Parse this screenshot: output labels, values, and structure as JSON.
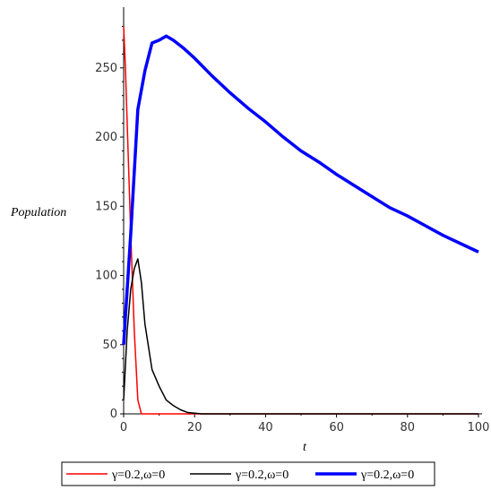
{
  "chart_data": {
    "type": "line",
    "title": "",
    "xlabel": "t",
    "ylabel": "Population",
    "xlim": [
      0,
      100
    ],
    "ylim": [
      0,
      290
    ],
    "x_ticks": [
      0,
      20,
      40,
      60,
      80,
      100
    ],
    "y_ticks": [
      0,
      50,
      100,
      150,
      200,
      250
    ],
    "grid": false,
    "legend_position": "bottom",
    "series": [
      {
        "name": "γ=0.2,ω=0",
        "color": "#ff0000",
        "points": [
          [
            0,
            280
          ],
          [
            0.5,
            250
          ],
          [
            1,
            210
          ],
          [
            2,
            130
          ],
          [
            3,
            60
          ],
          [
            4,
            10
          ],
          [
            5,
            0
          ],
          [
            20,
            0
          ],
          [
            100,
            0
          ]
        ]
      },
      {
        "name": "γ=0.2,ω=0",
        "color": "#000000",
        "points": [
          [
            0,
            10
          ],
          [
            1,
            60
          ],
          [
            2,
            90
          ],
          [
            3,
            105
          ],
          [
            4,
            112
          ],
          [
            5,
            95
          ],
          [
            6,
            65
          ],
          [
            8,
            32
          ],
          [
            10,
            20
          ],
          [
            12,
            10
          ],
          [
            14,
            6
          ],
          [
            16,
            3
          ],
          [
            18,
            1
          ],
          [
            20,
            0.5
          ],
          [
            22,
            0
          ],
          [
            100,
            0
          ]
        ]
      },
      {
        "name": "γ=0.2,ω=0",
        "color": "#0000ff",
        "points": [
          [
            0,
            50
          ],
          [
            1,
            90
          ],
          [
            2,
            130
          ],
          [
            4,
            220
          ],
          [
            6,
            248
          ],
          [
            8,
            268
          ],
          [
            10,
            270
          ],
          [
            12,
            273
          ],
          [
            14,
            270
          ],
          [
            17,
            264
          ],
          [
            20,
            257
          ],
          [
            25,
            244
          ],
          [
            30,
            232
          ],
          [
            35,
            221
          ],
          [
            40,
            211
          ],
          [
            45,
            200
          ],
          [
            50,
            190
          ],
          [
            55,
            182
          ],
          [
            60,
            173
          ],
          [
            65,
            165
          ],
          [
            70,
            157
          ],
          [
            75,
            149
          ],
          [
            80,
            143
          ],
          [
            85,
            136
          ],
          [
            90,
            129
          ],
          [
            95,
            123
          ],
          [
            100,
            117
          ]
        ]
      }
    ]
  }
}
